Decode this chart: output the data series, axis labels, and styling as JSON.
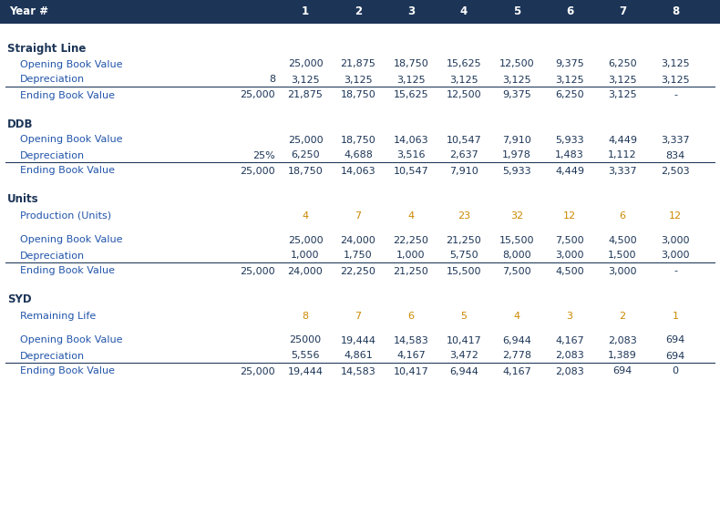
{
  "header_bg": "#1c3557",
  "header_fg": "#ffffff",
  "section_bold_color": "#1c3557",
  "row_label_color": "#2255aa",
  "data_color": "#1c3557",
  "special_color": "#cc8800",
  "bg_color": "#ffffff",
  "col_headers": [
    "Year #",
    "1",
    "2",
    "3",
    "4",
    "5",
    "6",
    "7",
    "8"
  ],
  "sections": [
    {
      "name": "Straight Line",
      "rows": [
        {
          "label": "Opening Book Value",
          "col0": "",
          "values": [
            "25,000",
            "21,875",
            "18,750",
            "15,625",
            "12,500",
            "9,375",
            "6,250",
            "3,125"
          ],
          "underline": false,
          "special": false,
          "spacer": false
        },
        {
          "label": "Depreciation",
          "col0": "8",
          "values": [
            "3,125",
            "3,125",
            "3,125",
            "3,125",
            "3,125",
            "3,125",
            "3,125",
            "3,125"
          ],
          "underline": true,
          "special": false,
          "spacer": false
        },
        {
          "label": "Ending Book Value",
          "col0": "25,000",
          "values": [
            "21,875",
            "18,750",
            "15,625",
            "12,500",
            "9,375",
            "6,250",
            "3,125",
            "-"
          ],
          "underline": false,
          "special": false,
          "spacer": false
        }
      ]
    },
    {
      "name": "DDB",
      "rows": [
        {
          "label": "Opening Book Value",
          "col0": "",
          "values": [
            "25,000",
            "18,750",
            "14,063",
            "10,547",
            "7,910",
            "5,933",
            "4,449",
            "3,337"
          ],
          "underline": false,
          "special": false,
          "spacer": false
        },
        {
          "label": "Depreciation",
          "col0": "25%",
          "values": [
            "6,250",
            "4,688",
            "3,516",
            "2,637",
            "1,978",
            "1,483",
            "1,112",
            "834"
          ],
          "underline": true,
          "special": false,
          "spacer": false
        },
        {
          "label": "Ending Book Value",
          "col0": "25,000",
          "values": [
            "18,750",
            "14,063",
            "10,547",
            "7,910",
            "5,933",
            "4,449",
            "3,337",
            "2,503"
          ],
          "underline": false,
          "special": false,
          "spacer": false
        }
      ]
    },
    {
      "name": "Units",
      "rows": [
        {
          "label": "Production (Units)",
          "col0": "",
          "values": [
            "4",
            "7",
            "4",
            "23",
            "32",
            "12",
            "6",
            "12"
          ],
          "underline": false,
          "special": true,
          "spacer": false
        },
        {
          "label": "",
          "col0": "",
          "values": [
            "",
            "",
            "",
            "",
            "",
            "",
            "",
            ""
          ],
          "underline": false,
          "special": false,
          "spacer": true
        },
        {
          "label": "Opening Book Value",
          "col0": "",
          "values": [
            "25,000",
            "24,000",
            "22,250",
            "21,250",
            "15,500",
            "7,500",
            "4,500",
            "3,000"
          ],
          "underline": false,
          "special": false,
          "spacer": false
        },
        {
          "label": "Depreciation",
          "col0": "",
          "values": [
            "1,000",
            "1,750",
            "1,000",
            "5,750",
            "8,000",
            "3,000",
            "1,500",
            "3,000"
          ],
          "underline": true,
          "special": false,
          "spacer": false
        },
        {
          "label": "Ending Book Value",
          "col0": "25,000",
          "values": [
            "24,000",
            "22,250",
            "21,250",
            "15,500",
            "7,500",
            "4,500",
            "3,000",
            "-"
          ],
          "underline": false,
          "special": false,
          "spacer": false
        }
      ]
    },
    {
      "name": "SYD",
      "rows": [
        {
          "label": "Remaining Life",
          "col0": "",
          "values": [
            "8",
            "7",
            "6",
            "5",
            "4",
            "3",
            "2",
            "1"
          ],
          "underline": false,
          "special": true,
          "spacer": false
        },
        {
          "label": "",
          "col0": "",
          "values": [
            "",
            "",
            "",
            "",
            "",
            "",
            "",
            ""
          ],
          "underline": false,
          "special": false,
          "spacer": true
        },
        {
          "label": "Opening Book Value",
          "col0": "",
          "values": [
            "25000",
            "19,444",
            "14,583",
            "10,417",
            "6,944",
            "4,167",
            "2,083",
            "694"
          ],
          "underline": false,
          "special": false,
          "spacer": false
        },
        {
          "label": "Depreciation",
          "col0": "",
          "values": [
            "5,556",
            "4,861",
            "4,167",
            "3,472",
            "2,778",
            "2,083",
            "1,389",
            "694"
          ],
          "underline": true,
          "special": false,
          "spacer": false
        },
        {
          "label": "Ending Book Value",
          "col0": "25,000",
          "values": [
            "19,444",
            "14,583",
            "10,417",
            "6,944",
            "4,167",
            "2,083",
            "694",
            "0"
          ],
          "underline": false,
          "special": false,
          "spacer": false
        }
      ]
    }
  ]
}
